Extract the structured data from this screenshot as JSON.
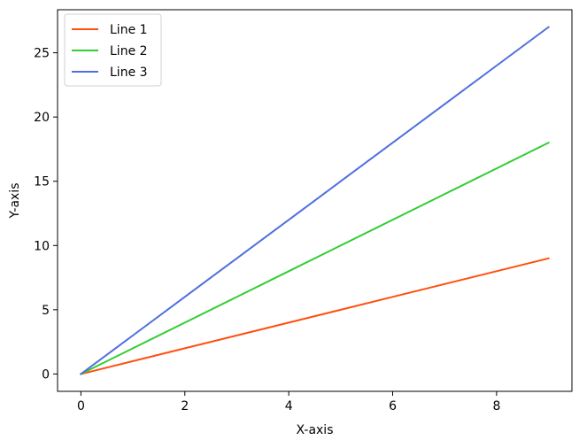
{
  "chart_data": {
    "type": "line",
    "title": "",
    "xlabel": "X-axis",
    "ylabel": "Y-axis",
    "x": [
      0,
      1,
      2,
      3,
      4,
      5,
      6,
      7,
      8,
      9
    ],
    "series": [
      {
        "name": "Line 1",
        "color": "#ff4f0f",
        "values": [
          0,
          1,
          2,
          3,
          4,
          5,
          6,
          7,
          8,
          9
        ]
      },
      {
        "name": "Line 2",
        "color": "#33cc33",
        "values": [
          0,
          2,
          4,
          6,
          8,
          10,
          12,
          14,
          16,
          18
        ]
      },
      {
        "name": "Line 3",
        "color": "#4f6fdf",
        "values": [
          0,
          3,
          6,
          9,
          12,
          15,
          18,
          21,
          24,
          27
        ]
      }
    ],
    "xlim": [
      -0.45,
      9.45
    ],
    "ylim": [
      -1.35,
      28.35
    ],
    "xticks": [
      0,
      2,
      4,
      6,
      8
    ],
    "yticks": [
      0,
      5,
      10,
      15,
      20,
      25
    ],
    "xtick_labels": [
      "0",
      "2",
      "4",
      "6",
      "8"
    ],
    "ytick_labels": [
      "0",
      "5",
      "10",
      "15",
      "20",
      "25"
    ],
    "grid": false,
    "legend_position": "upper-left"
  }
}
